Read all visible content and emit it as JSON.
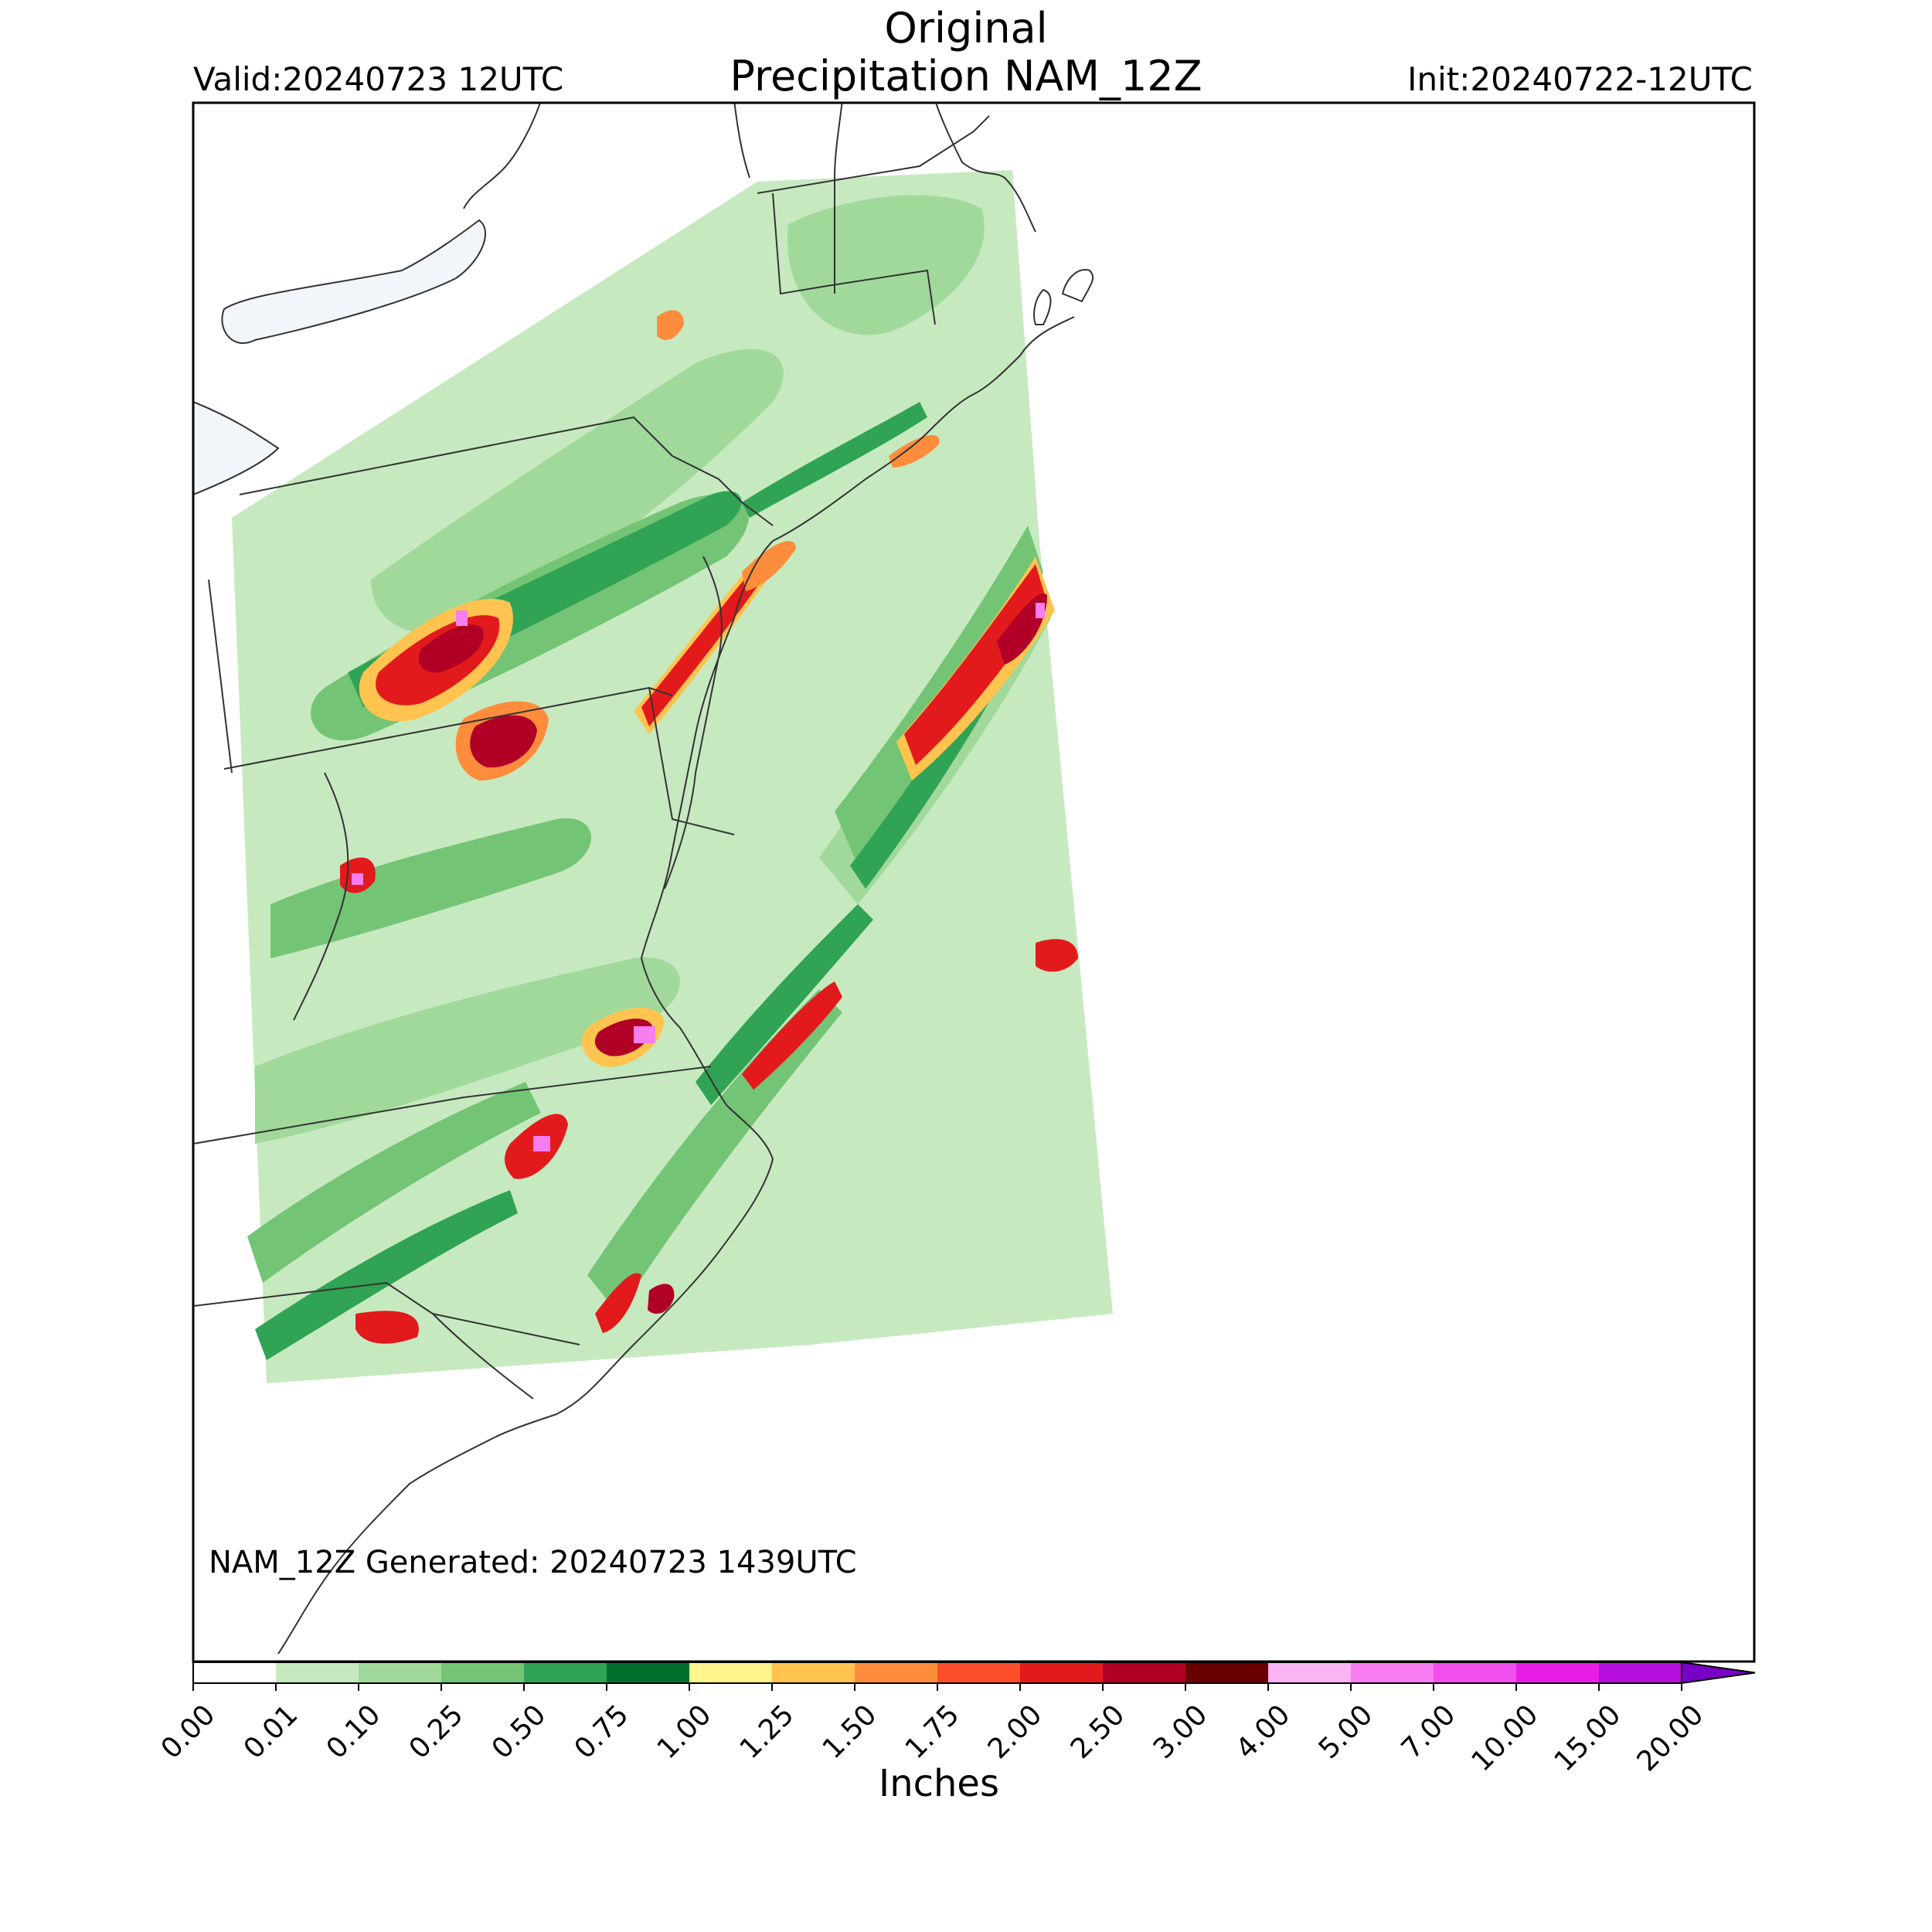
{
  "header": {
    "title_line1": "Original",
    "title_line2": "Precipitation NAM_12Z",
    "valid": "Valid:20240723 12UTC",
    "init": "Init:20240722-12UTC"
  },
  "map": {
    "generated": "NAM_12Z Generated: 20240723 1439UTC",
    "coastline_color": "#333333",
    "lake_color": "#f2f5fa"
  },
  "colorbar": {
    "unit_label": "Inches",
    "ticks": [
      "0.00",
      "0.01",
      "0.10",
      "0.25",
      "0.50",
      "0.75",
      "1.00",
      "1.25",
      "1.50",
      "1.75",
      "2.00",
      "2.50",
      "3.00",
      "4.00",
      "5.00",
      "7.00",
      "10.00",
      "15.00",
      "20.00"
    ],
    "colors": [
      "#ffffff",
      "#c7e9c0",
      "#a1d99b",
      "#74c476",
      "#31a354",
      "#006d2c",
      "#fff58c",
      "#fec44f",
      "#fd8d3c",
      "#fc4e2a",
      "#e31a1c",
      "#b10026",
      "#6b0000",
      "#f9b4f4",
      "#f77df0",
      "#f24ded",
      "#e81ee6",
      "#b40fdc",
      "#7a00c8"
    ],
    "extend": "max"
  }
}
